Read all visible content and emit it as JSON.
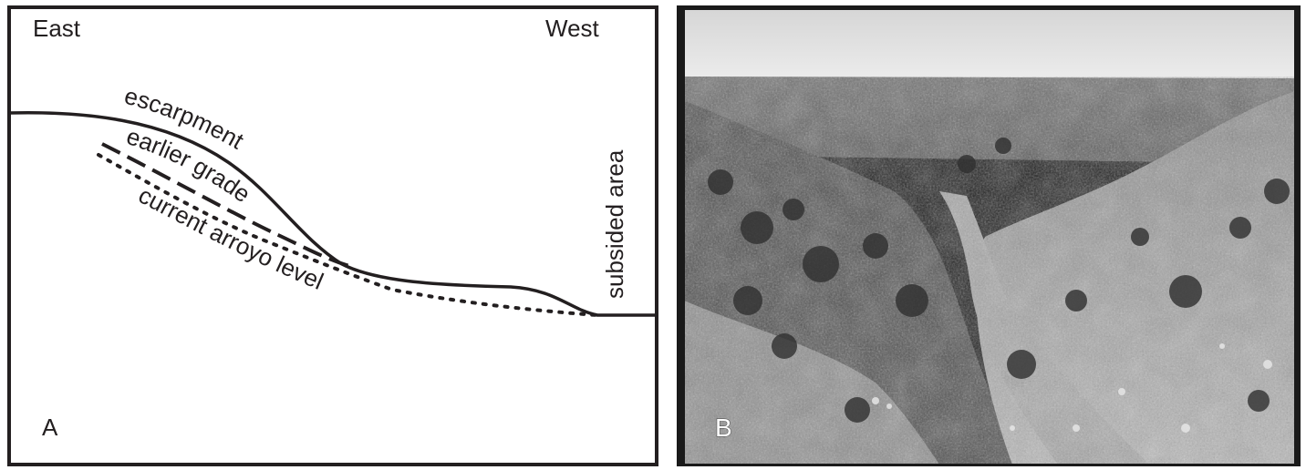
{
  "panel_a": {
    "labels": {
      "east": "East",
      "west": "West",
      "escarpment": "escarpment",
      "earlier_grade": "earlier grade",
      "current_arroyo_level": "current arroyo level",
      "subsided_area": "subsided area",
      "panel_letter": "A"
    },
    "line_styles": {
      "escarpment": "solid",
      "earlier_grade": "dashed",
      "current_arroyo_level": "dotted"
    },
    "line_color": "#231f20"
  },
  "panel_b": {
    "panel_letter": "B",
    "content": "grayscale landscape photograph"
  }
}
